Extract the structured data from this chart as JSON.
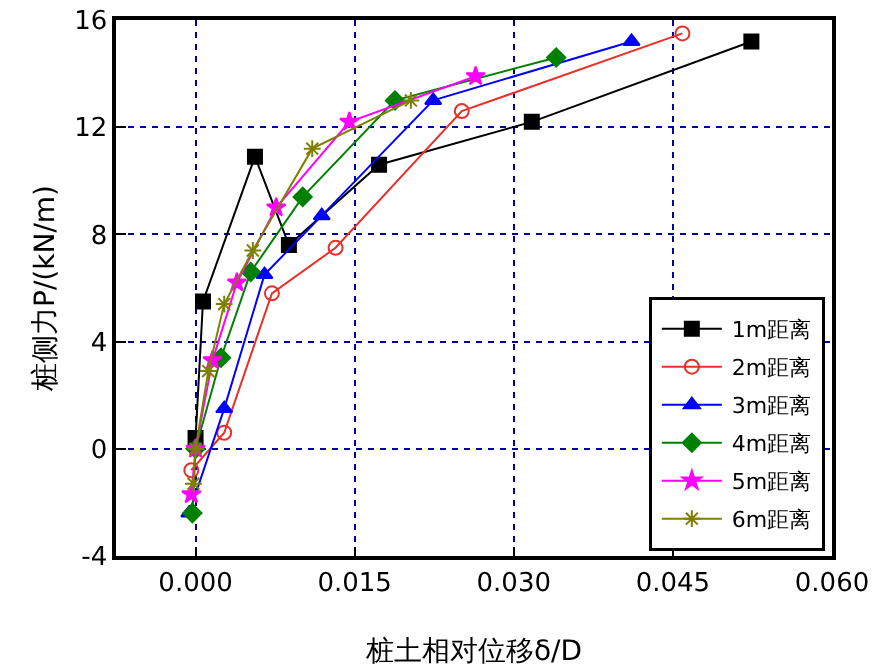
{
  "chart_data": {
    "type": "line",
    "xlabel": "桩土相对位移δ/D",
    "ylabel": "桩侧力P/(kN/m)",
    "xlim": [
      -0.0075,
      0.06
    ],
    "xticks": [
      {
        "value": 0,
        "label": "0.000"
      },
      {
        "value": 0.015,
        "label": "0.015"
      },
      {
        "value": 0.03,
        "label": "0.030"
      },
      {
        "value": 0.045,
        "label": "0.045"
      },
      {
        "value": 0.06,
        "label": "0.060"
      }
    ],
    "ylim": [
      -4,
      16
    ],
    "yticks": [
      -4,
      0,
      4,
      8,
      12,
      16
    ],
    "grid": true,
    "legend": "bottom right",
    "series": [
      {
        "name": "1m距离",
        "color": "#000000",
        "marker": "square",
        "x": [
          0,
          0.0007,
          0.0056,
          0.0088,
          0.0173,
          0.0317,
          0.0524
        ],
        "values": [
          0.4,
          5.5,
          10.9,
          7.6,
          10.6,
          12.2,
          15.2
        ]
      },
      {
        "name": "2m距离",
        "color": "#e8302a",
        "marker": "circle",
        "x": [
          -0.0004,
          0.0027,
          0.0072,
          0.0132,
          0.0251,
          0.0459
        ],
        "values": [
          -0.8,
          0.6,
          5.8,
          7.5,
          12.6,
          15.5
        ]
      },
      {
        "name": "3m距离",
        "color": "#0000ff",
        "marker": "triangle",
        "x": [
          -0.0006,
          0.0027,
          0.0065,
          0.0119,
          0.0224,
          0.0411
        ],
        "values": [
          -2.4,
          1.5,
          6.5,
          8.7,
          13,
          15.2
        ]
      },
      {
        "name": "4m距离",
        "color": "#008000",
        "marker": "diamond",
        "x": [
          -0.0003,
          0,
          0.0024,
          0.0052,
          0.0101,
          0.0188,
          0.034
        ],
        "values": [
          -2.4,
          0,
          3.4,
          6.6,
          9.4,
          13,
          14.6
        ]
      },
      {
        "name": "5m距离",
        "color": "#ff00ff",
        "marker": "star",
        "x": [
          -0.0004,
          0,
          0.0016,
          0.0039,
          0.0076,
          0.0145,
          0.0264
        ],
        "values": [
          -1.7,
          0,
          3.3,
          6.2,
          9,
          12.2,
          13.9
        ]
      },
      {
        "name": "6m距离",
        "color": "#808000",
        "marker": "cross",
        "x": [
          -0.0002,
          0,
          0.0012,
          0.0027,
          0.0054,
          0.011,
          0.0203
        ],
        "values": [
          -1.3,
          0,
          2.9,
          5.4,
          7.4,
          11.2,
          13
        ]
      }
    ]
  }
}
